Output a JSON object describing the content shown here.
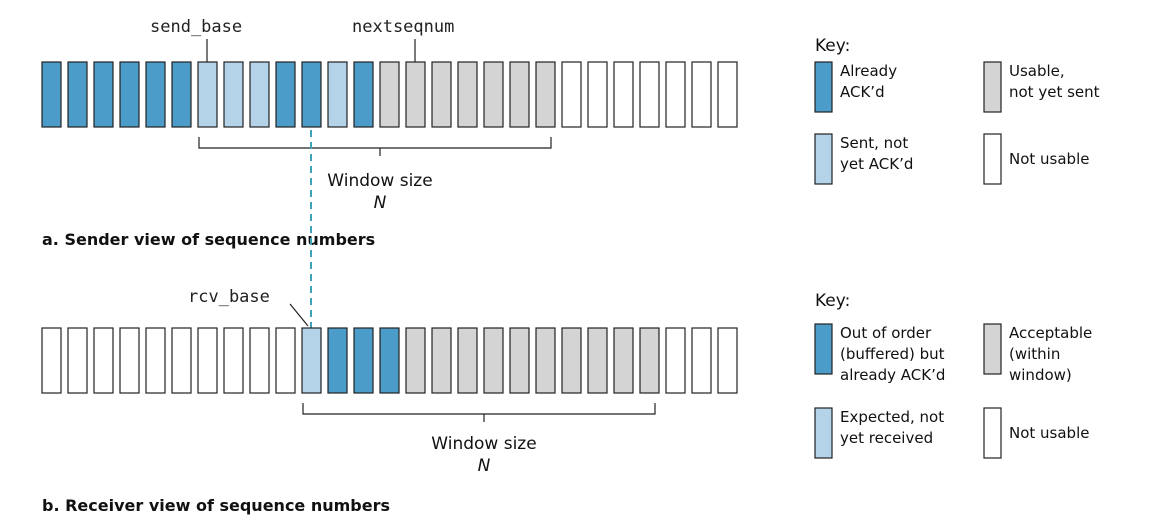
{
  "colors": {
    "acked": "#4b9cc8",
    "sent": "#b4d3e8",
    "usable": "#d4d4d4",
    "unusable": "#ffffff",
    "outline": "#222222",
    "dashed": "#3fa3b8"
  },
  "sender": {
    "cells": [
      "acked",
      "acked",
      "acked",
      "acked",
      "acked",
      "acked",
      "sent",
      "sent",
      "sent",
      "acked",
      "acked",
      "sent",
      "acked",
      "usable",
      "usable",
      "usable",
      "usable",
      "usable",
      "usable",
      "usable",
      "unusable",
      "unusable",
      "unusable",
      "unusable",
      "unusable",
      "unusable",
      "unusable"
    ],
    "send_base_label": "send_base",
    "nextseqnum_label": "nextseqnum",
    "window_label": "Window size",
    "window_n": "N",
    "caption": "a. Sender view of sequence numbers"
  },
  "receiver": {
    "cells": [
      "unusable",
      "unusable",
      "unusable",
      "unusable",
      "unusable",
      "unusable",
      "unusable",
      "unusable",
      "unusable",
      "unusable",
      "sent",
      "acked",
      "acked",
      "acked",
      "usable",
      "usable",
      "usable",
      "usable",
      "usable",
      "usable",
      "usable",
      "usable",
      "usable",
      "usable",
      "unusable",
      "unusable",
      "unusable"
    ],
    "rcv_base_label": "rcv_base",
    "window_label": "Window size",
    "window_n": "N",
    "caption": "b. Receiver view of sequence numbers"
  },
  "sender_key": {
    "title": "Key:",
    "items": [
      {
        "type": "acked",
        "lines": [
          "Already",
          "ACK’d"
        ]
      },
      {
        "type": "usable",
        "lines": [
          "Usable,",
          "not yet sent"
        ]
      },
      {
        "type": "sent",
        "lines": [
          "Sent, not",
          "yet ACK’d"
        ]
      },
      {
        "type": "unusable",
        "lines": [
          "Not usable"
        ]
      }
    ]
  },
  "receiver_key": {
    "title": "Key:",
    "items": [
      {
        "type": "acked",
        "lines": [
          "Out of order",
          "(buffered) but",
          "already ACK’d"
        ]
      },
      {
        "type": "usable",
        "lines": [
          "Acceptable",
          "(within",
          "window)"
        ]
      },
      {
        "type": "sent",
        "lines": [
          "Expected, not",
          "yet received"
        ]
      },
      {
        "type": "unusable",
        "lines": [
          "Not usable"
        ]
      }
    ]
  }
}
